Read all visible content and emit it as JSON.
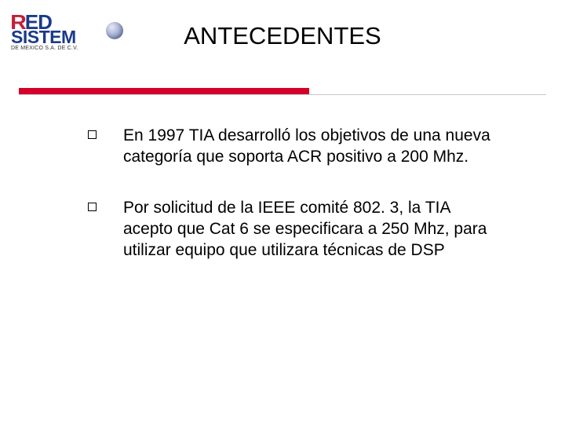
{
  "logo": {
    "line1_r": "R",
    "line1_ed": "ED",
    "line2": "SISTEM",
    "subtext": "DE MEXICO S.A. DE C.V."
  },
  "title": "ANTECEDENTES",
  "divider": {
    "red_color": "#d4002a",
    "gray_color": "#c8c8c8"
  },
  "bullets": [
    {
      "text": "En 1997 TIA desarrolló los objetivos de una nueva categoría que soporta ACR positivo a 200 Mhz."
    },
    {
      "text": "Por solicitud de la IEEE comité 802. 3, la TIA acepto que Cat 6 se especificara a 250 Mhz, para utilizar equipo que utilizara técnicas de DSP"
    }
  ],
  "colors": {
    "background": "#ffffff",
    "text": "#000000"
  }
}
